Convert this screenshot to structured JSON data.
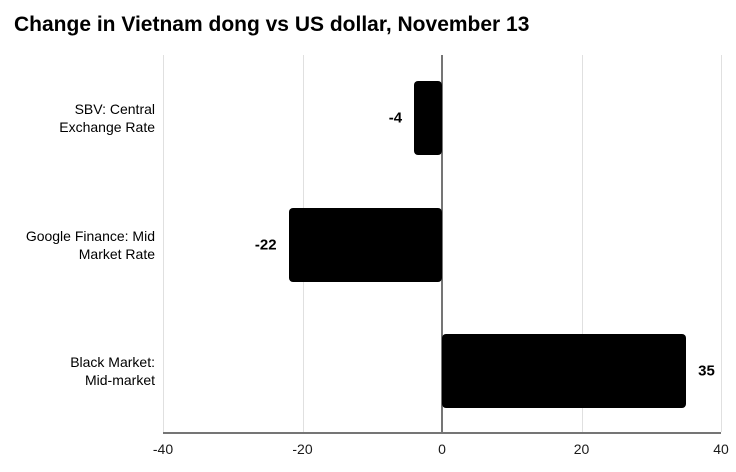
{
  "title": "Change in Vietnam dong vs US dollar, November 13",
  "chart_data": {
    "type": "bar",
    "orientation": "horizontal",
    "title": "Change in Vietnam dong vs US dollar, November 13",
    "categories": [
      "SBV: Central\nExchange Rate",
      "Google Finance: Mid\nMarket Rate",
      "Black Market:\nMid-market"
    ],
    "values": [
      -4,
      -22,
      35
    ],
    "value_labels": [
      "-4",
      "-22",
      "35"
    ],
    "xlim": [
      -40,
      40
    ],
    "x_ticks": [
      -40,
      -20,
      0,
      20,
      40
    ],
    "x_tick_labels": [
      "-40",
      "-20",
      "0",
      "20",
      "40"
    ],
    "grid": true,
    "legend": false,
    "xlabel": "",
    "ylabel": "",
    "colors": {
      "bar": "#000000",
      "gridline": "#e0e0e0",
      "zero_line": "#757575",
      "axis_line": "#757575",
      "text": "#000000",
      "background": "#ffffff"
    }
  }
}
